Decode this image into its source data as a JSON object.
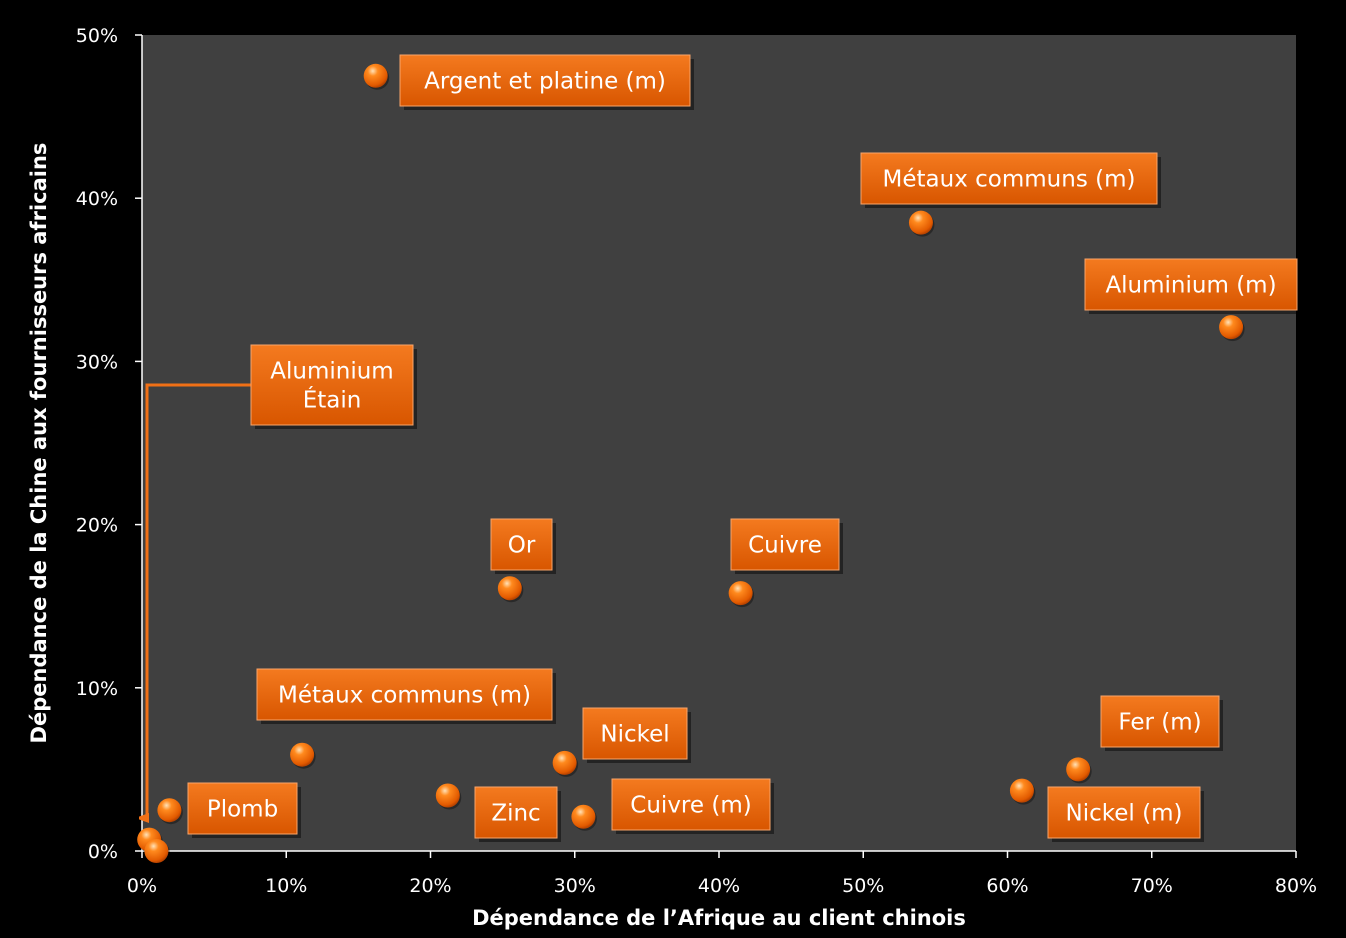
{
  "chart_data": {
    "type": "scatter",
    "xlabel": "Dépendance de l’Afrique au client chinois",
    "ylabel": "Dépendance de la Chine aux fournisseurs africains",
    "xlim": [
      0,
      0.8
    ],
    "ylim": [
      0,
      0.5
    ],
    "x_ticks": [
      "0%",
      "10%",
      "20%",
      "30%",
      "40%",
      "50%",
      "60%",
      "70%",
      "80%"
    ],
    "y_ticks": [
      "0%",
      "10%",
      "20%",
      "30%",
      "40%",
      "50%"
    ],
    "grid": false,
    "point_color": "#FF6A00",
    "plot_background": "#404040",
    "label_color": "#F26E0E",
    "points": [
      {
        "x": 0.162,
        "y": 0.475,
        "label": [
          "Argent et platine (m)"
        ]
      },
      {
        "x": 0.54,
        "y": 0.385,
        "label": [
          "Métaux communs (m)"
        ]
      },
      {
        "x": 0.755,
        "y": 0.321,
        "label": [
          "Aluminium (m)"
        ]
      },
      {
        "x": 0.255,
        "y": 0.161,
        "label": [
          "Or"
        ]
      },
      {
        "x": 0.415,
        "y": 0.158,
        "label": [
          "Cuivre"
        ]
      },
      {
        "x": 0.111,
        "y": 0.059,
        "label": [
          "Métaux communs (m)"
        ]
      },
      {
        "x": 0.293,
        "y": 0.054,
        "label": [
          "Nickel"
        ]
      },
      {
        "x": 0.212,
        "y": 0.034,
        "label": [
          "Zinc"
        ]
      },
      {
        "x": 0.306,
        "y": 0.021,
        "label": [
          "Cuivre (m)"
        ]
      },
      {
        "x": 0.019,
        "y": 0.025,
        "label": [
          "Plomb"
        ]
      },
      {
        "x": 0.649,
        "y": 0.05,
        "label": [
          "Fer (m)"
        ]
      },
      {
        "x": 0.61,
        "y": 0.037,
        "label": [
          "Nickel (m)"
        ]
      },
      {
        "x": 0.005,
        "y": 0.007,
        "label": [
          "Aluminium",
          "Étain"
        ]
      },
      {
        "x": 0.01,
        "y": 0.0,
        "label": []
      }
    ]
  }
}
